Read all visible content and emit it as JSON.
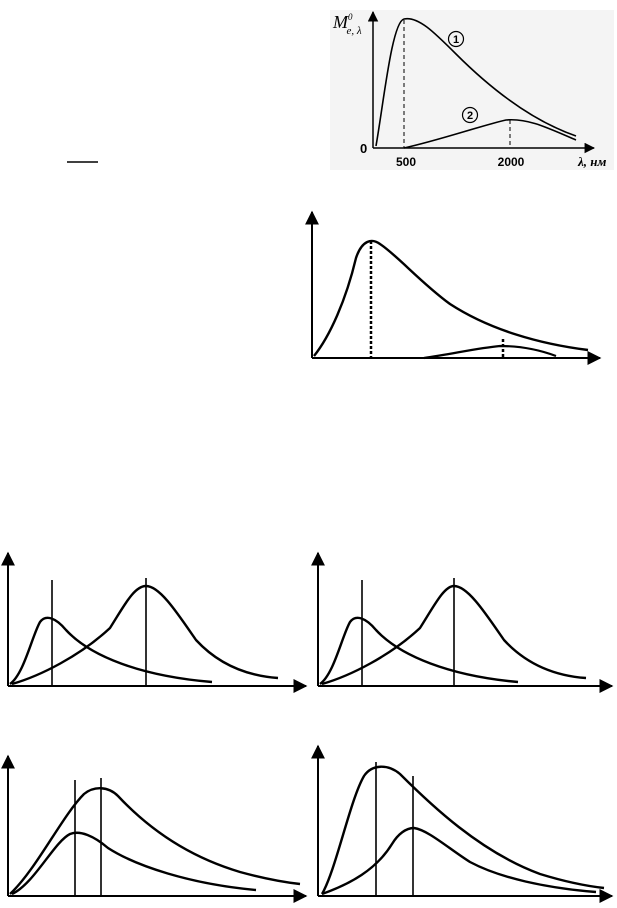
{
  "figure": {
    "y_axis_label": "M",
    "y_axis_sub": "e, λ",
    "y_axis_sup": "0",
    "x_axis_label": "λ, нм",
    "origin_label": "0",
    "tick_500": "500",
    "tick_2000": "2000",
    "curve_1_marker": "1",
    "curve_2_marker": "2"
  },
  "chart_data": {
    "type": "line",
    "xlabel": "λ, нм",
    "ylabel": "M e, λ 0",
    "series": [
      {
        "name": "1",
        "peak_x": 500
      },
      {
        "name": "2",
        "peak_x": 2000
      }
    ],
    "x_ticks": [
      "500",
      "2000"
    ],
    "grid": false
  }
}
